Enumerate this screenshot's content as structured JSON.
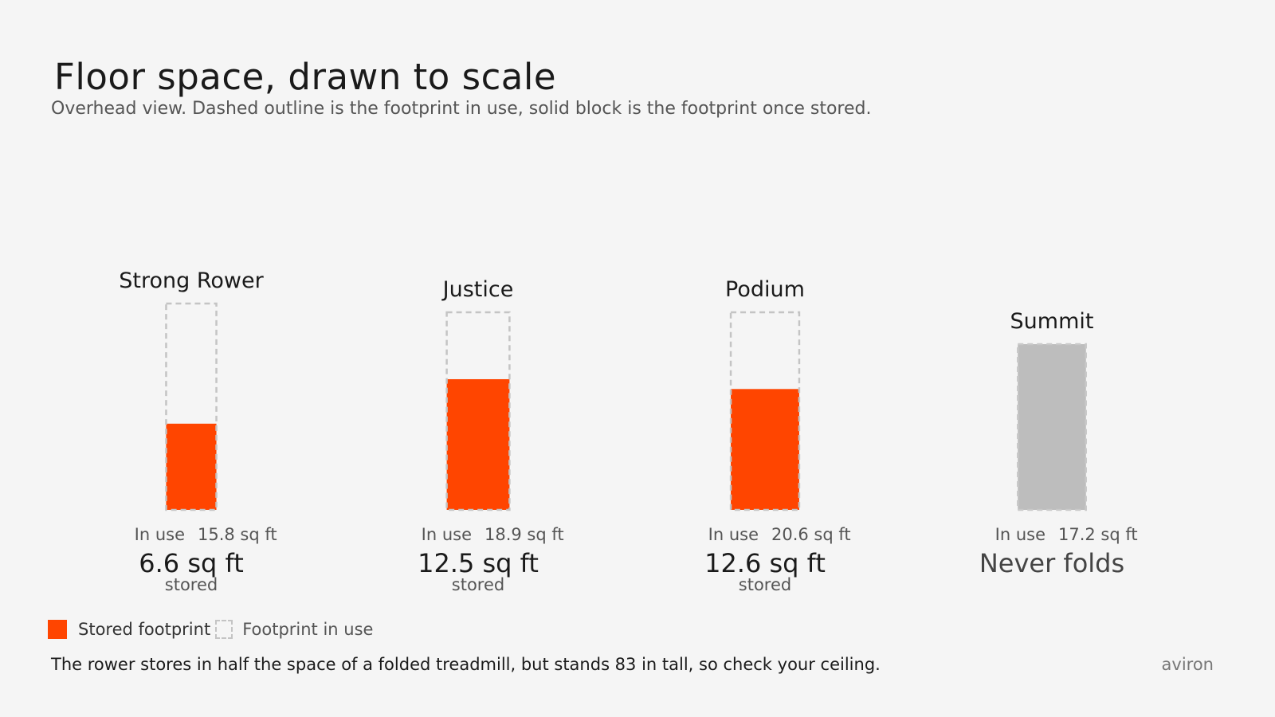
{
  "header": {
    "title": "Floor space, drawn to scale",
    "subtitle": "Overhead view. Dashed outline is the footprint in use, solid block is the footprint once stored."
  },
  "legend": {
    "stored_label": "Stored footprint",
    "in_use_label": "Footprint in use"
  },
  "footer": {
    "note": "The rower stores in half the space of a folded treadmill, but stands 83 in tall, so check your ceiling.",
    "brand": "aviron"
  },
  "colors": {
    "stored": "#ff4500",
    "non_folding": "#bdbdbd",
    "outline": "#c4c4c4"
  },
  "chart_data": {
    "type": "bar",
    "title": "Floor space, drawn to scale",
    "unit": "sq ft",
    "categories": [
      "Strong Rower",
      "Justice",
      "Podium",
      "Summit"
    ],
    "series": [
      {
        "name": "Footprint in use",
        "values": [
          15.8,
          18.9,
          20.6,
          17.2
        ]
      },
      {
        "name": "Stored footprint",
        "values": [
          6.6,
          12.5,
          12.6,
          null
        ]
      }
    ],
    "items": [
      {
        "name": "Strong Rower",
        "in_use_label": "In use",
        "in_use_text": "15.8 sq ft",
        "stored_text": "6.6 sq ft",
        "stored_caption": "stored",
        "folds": true
      },
      {
        "name": "Justice",
        "in_use_label": "In use",
        "in_use_text": "18.9 sq ft",
        "stored_text": "12.5 sq ft",
        "stored_caption": "stored",
        "folds": true
      },
      {
        "name": "Podium",
        "in_use_label": "In use",
        "in_use_text": "20.6 sq ft",
        "stored_text": "12.6 sq ft",
        "stored_caption": "stored",
        "folds": true
      },
      {
        "name": "Summit",
        "in_use_label": "In use",
        "in_use_text": "17.2 sq ft",
        "stored_text": "Never folds",
        "stored_caption": "",
        "folds": false
      }
    ]
  }
}
